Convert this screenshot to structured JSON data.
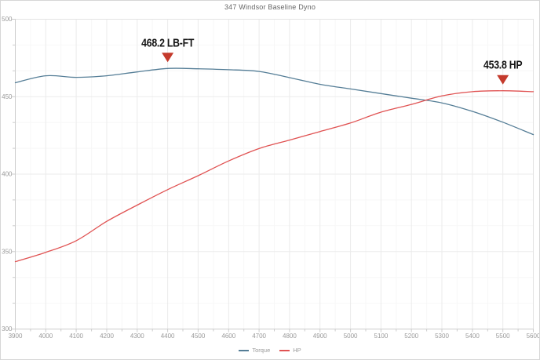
{
  "title": "347 Windsor Baseline Dyno",
  "colors": {
    "torque_line": "#547d96",
    "hp_line": "#e05252",
    "marker": "#c43a2c",
    "annotation_text": "#141414",
    "axis_text": "#999999",
    "title_text": "#666666",
    "grid_major": "#ebebeb",
    "grid_minor": "#f7f7f7",
    "axis_line": "#cccccc",
    "frame_line": "#e3e3e3"
  },
  "legend": {
    "position": "bottom-center",
    "items": [
      {
        "label": "Torque"
      },
      {
        "label": "HP"
      }
    ]
  },
  "chart_data": {
    "type": "line",
    "title": "347 Windsor Baseline Dyno",
    "xlabel": "",
    "ylabel": "",
    "xlim": [
      3900,
      5600
    ],
    "ylim": [
      300,
      500
    ],
    "x_ticks": [
      3900,
      4000,
      4100,
      4200,
      4300,
      4400,
      4500,
      4600,
      4700,
      4800,
      4900,
      5000,
      5100,
      5200,
      5300,
      5400,
      5500,
      5600
    ],
    "y_ticks": [
      300,
      350,
      400,
      450,
      500
    ],
    "grid": true,
    "x": [
      3900,
      4000,
      4100,
      4200,
      4300,
      4400,
      4500,
      4600,
      4700,
      4800,
      4900,
      5000,
      5100,
      5200,
      5300,
      5400,
      5500,
      5600
    ],
    "series": [
      {
        "name": "Torque",
        "color": "#547d96",
        "values": [
          459,
          463.5,
          462.5,
          463.5,
          466,
          468.2,
          468,
          467.4,
          466.3,
          462.3,
          458,
          455,
          452,
          449,
          446,
          440.5,
          433.5,
          425.5
        ]
      },
      {
        "name": "HP",
        "color": "#e05252",
        "values": [
          343.5,
          349.5,
          357,
          369.5,
          380,
          390,
          399,
          408.5,
          416.5,
          422,
          427.5,
          433,
          440,
          445,
          450.5,
          453.2,
          453.8,
          453.2
        ]
      }
    ],
    "annotations": [
      {
        "text": "468.2 LB-FT",
        "series": "Torque",
        "x": 4400,
        "y": 468.2
      },
      {
        "text": "453.8 HP",
        "series": "HP",
        "x": 5500,
        "y": 453.8
      }
    ]
  }
}
